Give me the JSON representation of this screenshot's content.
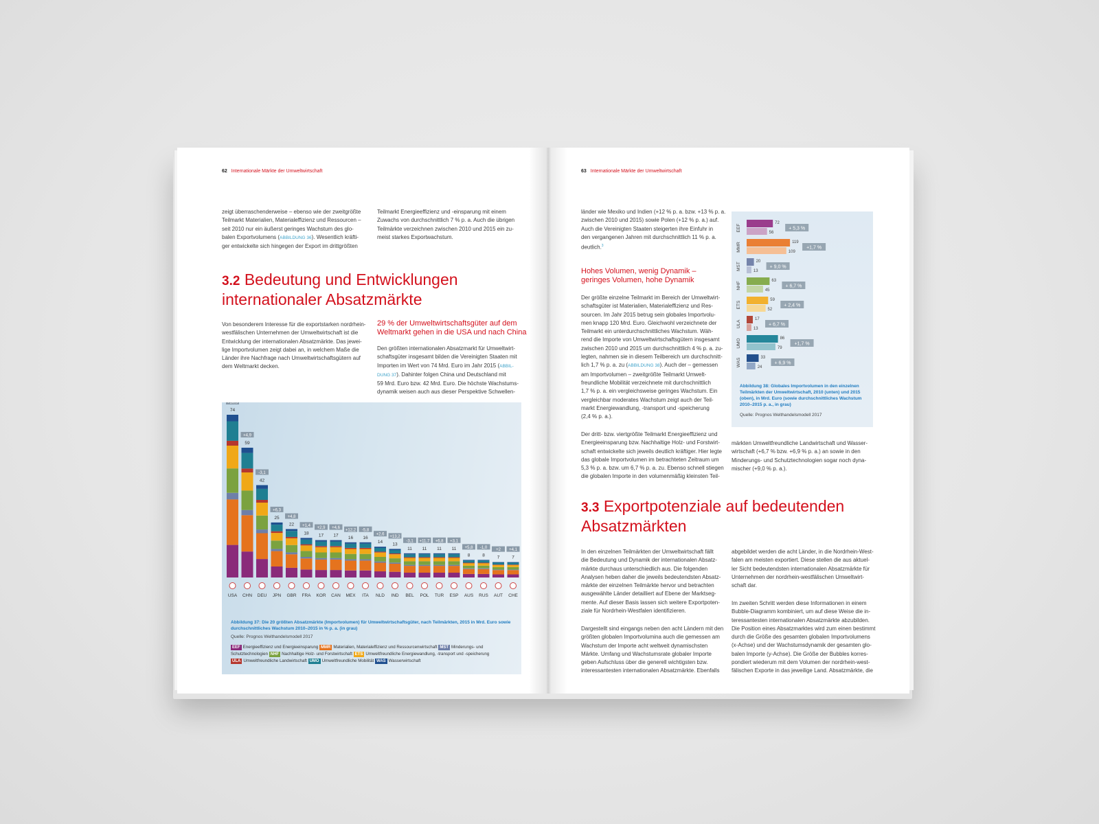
{
  "left": {
    "header": {
      "num": "62",
      "title": "Internationale Märkte der Umweltwirtschaft"
    },
    "col1_top": [
      "zeigt überraschenderweise – ebenso wie der zweitgrößte",
      "Teilmarkt Materialien, Materialeffizienz und Ressourcen –",
      "seit 2010 nur ein äußerst geringes Wachstum des glo-",
      "balen Exportvolumens (",
      "ABBILDUNG 36",
      "). Wesentlich kräfti-",
      "ger entwickelte sich hingegen der Export im drittgrößten"
    ],
    "col2_top": [
      "Teilmarkt Energieeffizienz und -einsparung mit einem",
      "Zuwachs von durchschnittlich 7 % p. a. Auch die übrigen",
      "Teilmärkte verzeichnen zwischen 2010 und 2015 ein zu-",
      "meist starkes Exportwachstum."
    ],
    "section_num": "3.2",
    "section_title_1": "Bedeutung und Entwicklungen",
    "section_title_2": "internationaler Absatzmärkte",
    "col1_body": [
      "Von besonderem Interesse für die exportstarken nordrhein-",
      "westfälischen Unternehmen der Umweltwirtschaft ist die",
      "Entwicklung der internationalen Absatzmärkte. Das jewei-",
      "lige Importvolumen zeigt dabei an, in welchem Maße die",
      "Länder ihre Nachfrage nach Umweltwirtschaftsgütern auf",
      "dem Weltmarkt decken."
    ],
    "subhead": [
      "29 % der Umweltwirtschaftsgüter auf dem",
      "Weltmarkt gehen in die USA und nach China"
    ],
    "col2_body": [
      "Den größten internationalen Absatzmarkt für Umweltwirt-",
      "schaftsgüter insgesamt bilden die Vereinigten Staaten mit",
      "Importen im Wert von 74 Mrd. Euro im Jahr 2015 (",
      "ABBIL-",
      "DUNG 37",
      "). Dahinter folgen China und Deutschland mit",
      "59 Mrd. Euro bzw. 42 Mrd. Euro. Die höchste Wachstums-",
      "dynamik weisen auch aus dieser Perspektive Schwellen-"
    ]
  },
  "right": {
    "header": {
      "num": "63",
      "title": "Internationale Märkte der Umweltwirtschaft"
    },
    "col1_top": [
      "länder wie Mexiko und Indien (+12 % p. a. bzw. +13 % p. a.",
      "zwischen 2010 und 2015) sowie Polen (+12 % p. a.) auf.",
      "Auch die Vereinigten Staaten steigerten ihre Einfuhr in",
      "den vergangenen Jahren mit durchschnittlich 11 % p. a.",
      "deutlich."
    ],
    "footnote_mark": "3",
    "subhead": [
      "Hohes Volumen, wenig Dynamik –",
      "geringes Volumen, hohe Dynamik"
    ],
    "col1_body": [
      "Der größte einzelne Teilmarkt im Bereich der Umweltwirt-",
      "schaftsgüter ist Materialien, Materialeffizienz und Res-",
      "sourcen. Im Jahr 2015 betrug sein globales Importvolu-",
      "men knapp 120 Mrd. Euro. Gleichwohl verzeichnete der",
      "Teilmarkt ein unterdurchschnittliches Wachstum. Wäh-",
      "rend die Importe von Umweltwirtschaftsgütern insgesamt",
      "zwischen 2010 und 2015 um durchschnittlich 4 % p. a. zu-",
      "legten, nahmen sie in diesem Teilbereich um durchschnitt-",
      "lich 1,7 % p. a. zu (",
      "ABBILDUNG 38",
      "). Auch der – gemessen",
      "am Importvolumen – zweitgrößte Teilmarkt Umwelt-",
      "freundliche Mobilität verzeichnete mit durchschnittlich",
      "1,7 % p. a. ein vergleichsweise geringes Wachstum. Ein",
      "vergleichbar moderates Wachstum zeigt auch der Teil-",
      "markt Energiewandlung, -transport und -speicherung",
      "(2,4 % p. a.)."
    ],
    "col1_body2": [
      "Der dritt- bzw. viertgrößte Teilmarkt Energieeffizienz und",
      "Energieeinsparung bzw. Nachhaltige Holz- und Forstwirt-",
      "schaft entwickelte sich jeweils deutlich kräftiger. Hier legte",
      "das globale Importvolumen im betrachteten Zeitraum um",
      "5,3 % p. a. bzw. um 6,7 % p. a. zu. Ebenso schnell stiegen",
      "die globalen Importe in den volumenmäßig kleinsten Teil-"
    ],
    "col2_after_fig": [
      "märkten Umweltfreundliche Landwirtschaft und Wasser-",
      "wirtschaft (+6,7 % bzw. +6,9 % p. a.) an sowie in den",
      "Minderungs- und Schutztechnologien sogar noch dyna-",
      "mischer (+9,0 % p. a.)."
    ],
    "section_num": "3.3",
    "section_title_1": "Exportpotenziale auf bedeutenden",
    "section_title_2": "Absatzmärkten",
    "col1_bottom": [
      "In den einzelnen Teilmärkten der Umweltwirtschaft fällt",
      "die Bedeutung und Dynamik der internationalen Absatz-",
      "märkte durchaus unterschiedlich aus. Die folgenden",
      "Analysen heben daher die jeweils bedeutendsten Absatz-",
      "märkte der einzelnen Teilmärkte hervor und betrachten",
      "ausgewählte Länder detailliert auf Ebene der Marktseg-",
      "mente. Auf dieser Basis lassen sich weitere Exportpoten-",
      "ziale für Nordrhein-Westfalen identifizieren."
    ],
    "col1_bottom2": [
      "Dargestellt sind eingangs neben den acht Ländern mit den",
      "größten globalen Importvolumina auch die gemessen am",
      "Wachstum der Importe acht weltweit dynamischsten",
      "Märkte. Umfang und Wachstumsrate globaler Importe",
      "geben Aufschluss über die generell wichtigsten bzw.",
      "interessantesten internationalen Absatzmärkte. Ebenfalls"
    ],
    "col2_bottom": [
      "abgebildet werden die acht Länder, in die Nordrhein-West-",
      "falen am meisten exportiert. Diese stellen die aus aktuel-",
      "ler Sicht bedeutendsten internationalen Absatzmärkte für",
      "Unternehmen der nordrhein-westfälischen Umweltwirt-",
      "schaft dar."
    ],
    "col2_bottom2": [
      "Im zweiten Schritt werden diese Informationen in einem",
      "Bubble-Diagramm kombiniert, um auf diese Weise die in-",
      "teressantesten internationalen Absatzmärkte abzubilden.",
      "Die Position eines Absatzmarktes wird zum einen bestimmt",
      "durch die Größe des gesamten globalen Importvolumens",
      "(x-Achse) und der Wachstumsdynamik der gesamten glo-",
      "balen Importe (y-Achse). Die Größe der Bubbles korres-",
      "pondiert wiederum mit dem Volumen der nordrhein-west-",
      "fälischen Exporte in das jeweilige Land. Absatzmärkte, die"
    ]
  },
  "chart_data": [
    {
      "type": "bar",
      "stacked": true,
      "caption": [
        "Abbildung 37: Die 20 größten Absatzmärkte (Importvolumen) für Umweltwirtschaftsgüter, nach Teilmärkten, 2015 in Mrd. Euro sowie",
        "durchschnittliches Wachstum 2010–2015 in % p. a. (in grau)"
      ],
      "source": "Quelle: Prognos Welthandelsmodell 2017",
      "categories": [
        "USA",
        "CHN",
        "DEU",
        "JPN",
        "GBR",
        "FRA",
        "KOR",
        "CAN",
        "MEX",
        "ITA",
        "NLD",
        "IND",
        "BEL",
        "POL",
        "TUR",
        "ESP",
        "AUS",
        "RUS",
        "AUT",
        "CHE"
      ],
      "values": [
        74,
        59,
        42,
        25,
        22,
        18,
        17,
        17,
        16,
        16,
        14,
        13,
        11,
        11,
        11,
        11,
        8,
        8,
        7,
        7
      ],
      "growth": [
        "+10,9",
        "+4,9",
        "-3,1",
        "+6,3",
        "+4,8",
        "+1,4",
        "+2,9",
        "+4,6",
        "+12,2",
        "-5,8",
        "+2,6",
        "+13,2",
        "-3,1",
        "+11,7",
        "+6,8",
        "+3,1",
        "+5,8",
        "-1,0",
        "+2",
        "+4,1"
      ],
      "segments": [
        "EEF",
        "MMR",
        "MST",
        "NHF",
        "ETS",
        "ULA",
        "UMO",
        "WAS"
      ],
      "legend": [
        {
          "code": "EEF",
          "label": "Energieeffizienz und Energieeinsparung",
          "color": "#8a2a7a"
        },
        {
          "code": "MMR",
          "label": "Materialien, Materialeffizienz und Ressourcenwirtschaft",
          "color": "#e5731e"
        },
        {
          "code": "MST",
          "label": "Minderungs- und Schutztechnologien",
          "color": "#6e7fa8"
        },
        {
          "code": "NHF",
          "label": "Nachhaltige Holz- und Forstwirtschaft",
          "color": "#7ba23f"
        },
        {
          "code": "ETS",
          "label": "Umweltfreundliche Energiewandlung, -transport und -speicherung",
          "color": "#f0a818"
        },
        {
          "code": "ULA",
          "label": "Umweltfreundliche Landwirtschaft",
          "color": "#b5372e"
        },
        {
          "code": "UMO",
          "label": "Umweltfreundliche Mobilität",
          "color": "#1f7f92"
        },
        {
          "code": "WAS",
          "label": "Wasserwirtschaft",
          "color": "#1f4f8f"
        }
      ]
    },
    {
      "type": "bar",
      "orientation": "horizontal",
      "caption": [
        "Abbildung 38: Globales Importvolumen in den einzelnen",
        "Teilmärkten der Umweltwirtschaft, 2010 (unten) und 2015",
        "(oben), in Mrd. Euro (sowie durchschnittliches Wachstum",
        "2010–2015 p. a., in grau)"
      ],
      "source": "Quelle: Prognos Welthandelsmodell 2017",
      "categories": [
        "EEF",
        "MMR",
        "MST",
        "NHF",
        "ETS",
        "ULA",
        "UMO",
        "WAS"
      ],
      "series": [
        {
          "name": "2015",
          "values": [
            72,
            119,
            20,
            63,
            59,
            17,
            86,
            33
          ]
        },
        {
          "name": "2010",
          "values": [
            56,
            109,
            13,
            45,
            52,
            13,
            79,
            24
          ]
        }
      ],
      "growth": [
        "+ 5,3 %",
        "+1,7 %",
        "+ 9,0 %",
        "+ 6,7 %",
        "+ 2,4 %",
        "+ 6,7 %",
        "+1,7 %",
        "+ 6,9 %"
      ],
      "colors_2015": [
        "#9a3d8c",
        "#ea7f34",
        "#7584ab",
        "#86ac4e",
        "#f2b12e",
        "#b24639",
        "#25879b",
        "#234f8c"
      ],
      "colors_2010": [
        "#cba3c6",
        "#f5bf95",
        "#b8c0d6",
        "#c3d6a4",
        "#f7d893",
        "#d8a29c",
        "#92c3cd",
        "#91a7c6"
      ]
    }
  ]
}
